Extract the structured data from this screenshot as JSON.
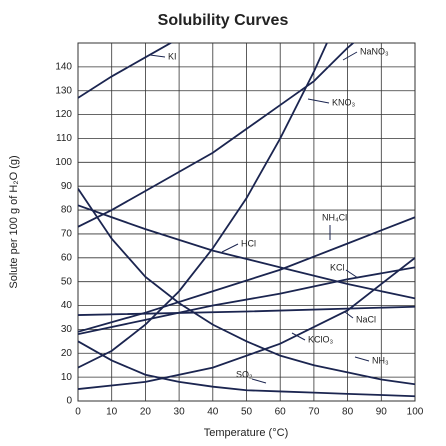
{
  "chart_data": {
    "type": "line",
    "title": "Solubility Curves",
    "xlabel": "Temperature (°C)",
    "ylabel": "Solute per 100 g of H₂O (g)",
    "xlim": [
      0,
      100
    ],
    "ylim": [
      0,
      150
    ],
    "xticks": [
      0,
      10,
      20,
      30,
      40,
      50,
      60,
      70,
      80,
      90,
      100
    ],
    "yticks": [
      0,
      10,
      20,
      30,
      40,
      50,
      60,
      70,
      80,
      90,
      100,
      110,
      120,
      130,
      140
    ],
    "grid": true,
    "series": [
      {
        "name": "KI",
        "color": "#1b2550",
        "x": [
          0,
          10,
          20,
          30
        ],
        "values": [
          127,
          136,
          144,
          152
        ]
      },
      {
        "name": "NaNO₃",
        "color": "#1b2550",
        "x": [
          0,
          10,
          20,
          30,
          40,
          50,
          60,
          70,
          80,
          90
        ],
        "values": [
          73,
          80,
          88,
          96,
          104,
          114,
          124,
          134,
          148,
          160
        ]
      },
      {
        "name": "KNO₃",
        "color": "#1b2550",
        "x": [
          0,
          10,
          20,
          30,
          40,
          50,
          60,
          70,
          80
        ],
        "values": [
          14,
          21,
          32,
          46,
          64,
          85,
          110,
          138,
          169
        ]
      },
      {
        "name": "NH₄Cl",
        "color": "#1b2550",
        "x": [
          0,
          20,
          40,
          60,
          80,
          100
        ],
        "values": [
          29,
          37,
          46,
          55,
          66,
          77
        ]
      },
      {
        "name": "HCl",
        "color": "#1b2550",
        "x": [
          0,
          20,
          40,
          60,
          80,
          100
        ],
        "values": [
          82,
          72,
          63,
          56,
          49,
          43
        ]
      },
      {
        "name": "KCl",
        "color": "#1b2550",
        "x": [
          0,
          20,
          40,
          60,
          80,
          100
        ],
        "values": [
          28,
          34,
          40,
          45,
          51,
          56
        ]
      },
      {
        "name": "NaCl",
        "color": "#1b2550",
        "x": [
          0,
          50,
          100
        ],
        "values": [
          36,
          37.5,
          39.5
        ]
      },
      {
        "name": "KClO₃",
        "color": "#1b2550",
        "x": [
          0,
          20,
          40,
          60,
          80,
          100
        ],
        "values": [
          5,
          8,
          14,
          24,
          38,
          60
        ]
      },
      {
        "name": "NH₃",
        "color": "#1b2550",
        "x": [
          0,
          10,
          20,
          30,
          40,
          50,
          60,
          70,
          80,
          90,
          100
        ],
        "values": [
          89,
          68,
          52,
          41,
          32,
          25,
          19,
          15,
          12,
          9,
          7
        ]
      },
      {
        "name": "SO₂",
        "color": "#1b2550",
        "x": [
          0,
          10,
          20,
          30,
          40,
          50,
          60,
          70,
          80,
          90,
          100
        ],
        "values": [
          25,
          17,
          11,
          8,
          6,
          4.5,
          4,
          3.5,
          3,
          2.5,
          2
        ]
      }
    ]
  }
}
